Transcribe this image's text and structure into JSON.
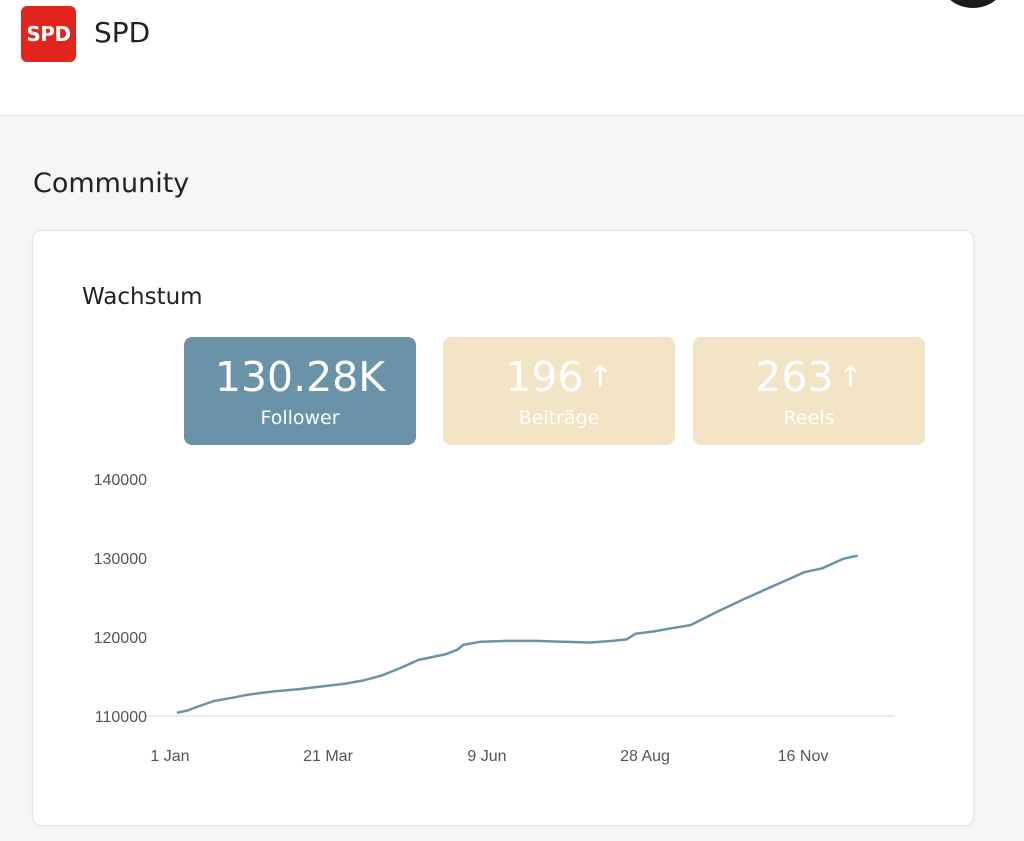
{
  "header": {
    "logo_text": "SPD",
    "title": "SPD"
  },
  "section": {
    "title": "Community"
  },
  "card": {
    "title": "Wachstum",
    "stats": [
      {
        "value": "130.28K",
        "label": "Follower",
        "trend": ""
      },
      {
        "value": "196",
        "label": "Beiträge",
        "trend": "↑"
      },
      {
        "value": "263",
        "label": "Reels",
        "trend": "↑"
      }
    ]
  },
  "colors": {
    "brand": "#e2261d",
    "primary_stat": "#6a93a9",
    "muted_stat": "#f4e4c6",
    "line": "#6a93a9"
  },
  "chart_data": {
    "type": "line",
    "title": "",
    "xlabel": "",
    "ylabel": "",
    "x_ticks": [
      "1 Jan",
      "21 Mar",
      "9 Jun",
      "28 Aug",
      "16 Nov"
    ],
    "y_ticks": [
      110000,
      120000,
      130000,
      140000
    ],
    "xlim": [
      "1 Jan",
      "31 Dec"
    ],
    "ylim": [
      110000,
      140000
    ],
    "grid": false,
    "series": [
      {
        "values": [
          [
            "2023-01-20",
            110400
          ],
          [
            "2023-01-26",
            110700
          ],
          [
            "2023-02-01",
            111200
          ],
          [
            "2023-02-10",
            111900
          ],
          [
            "2023-02-20",
            112300
          ],
          [
            "2023-03-01",
            112700
          ],
          [
            "2023-03-15",
            113100
          ],
          [
            "2023-03-30",
            113400
          ],
          [
            "2023-04-10",
            113700
          ],
          [
            "2023-04-25",
            114100
          ],
          [
            "2023-05-05",
            114500
          ],
          [
            "2023-05-15",
            115100
          ],
          [
            "2023-05-25",
            116000
          ],
          [
            "2023-06-05",
            117100
          ],
          [
            "2023-06-20",
            117800
          ],
          [
            "2023-06-27",
            118400
          ],
          [
            "2023-06-30",
            119000
          ],
          [
            "2023-07-10",
            119400
          ],
          [
            "2023-07-25",
            119500
          ],
          [
            "2023-08-10",
            119500
          ],
          [
            "2023-08-25",
            119400
          ],
          [
            "2023-09-10",
            119300
          ],
          [
            "2023-09-22",
            119500
          ],
          [
            "2023-09-30",
            119700
          ],
          [
            "2023-10-05",
            120400
          ],
          [
            "2023-10-15",
            120700
          ],
          [
            "2023-10-25",
            121100
          ],
          [
            "2023-11-05",
            121500
          ],
          [
            "2023-11-20",
            123200
          ],
          [
            "2023-12-05",
            124800
          ],
          [
            "2023-12-20",
            126300
          ],
          [
            "2024-01-01",
            127500
          ],
          [
            "2024-01-08",
            128200
          ],
          [
            "2024-01-18",
            128700
          ],
          [
            "2024-01-24",
            129300
          ],
          [
            "2024-01-30",
            129900
          ],
          [
            "2024-02-07",
            130300
          ]
        ]
      }
    ]
  }
}
